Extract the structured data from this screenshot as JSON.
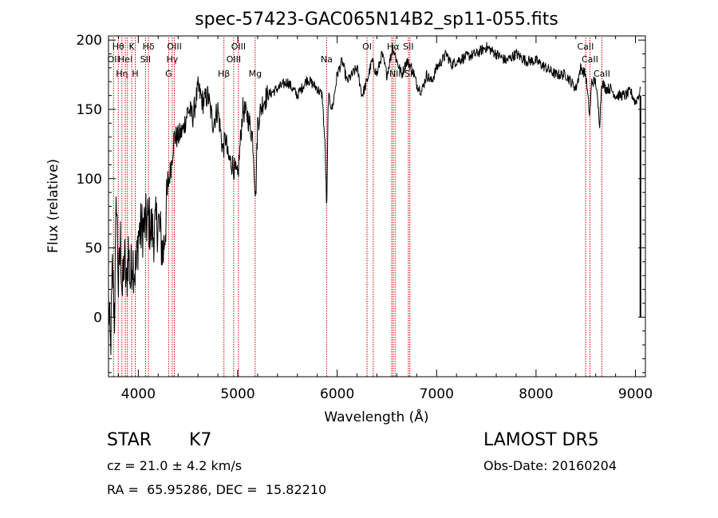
{
  "chart_data": {
    "type": "line",
    "title": "spec-57423-GAC065N14B2_sp11-055.fits",
    "xlabel": "Wavelength (Å)",
    "ylabel": "Flux (relative)",
    "xlim": [
      3700,
      9100
    ],
    "ylim": [
      -43,
      203
    ],
    "xticks": [
      4000,
      5000,
      6000,
      7000,
      8000,
      9000
    ],
    "yticks": [
      0,
      50,
      100,
      150,
      200
    ],
    "grid": false,
    "line_color": "#000000",
    "marker_color": "#cc0000",
    "series": [
      {
        "x": [
          3700,
          3720,
          3740,
          3760,
          3780,
          3800,
          3820,
          3840,
          3860,
          3880,
          3900,
          3920,
          3940,
          3960,
          3980,
          4000,
          4050,
          4100,
          4150,
          4200,
          4250,
          4300,
          4330,
          4360,
          4400,
          4450,
          4500,
          4550,
          4600,
          4650,
          4700,
          4750,
          4800,
          4850,
          4880,
          4900,
          4950,
          5000,
          5050,
          5100,
          5150,
          5180,
          5200,
          5250,
          5300,
          5400,
          5500,
          5600,
          5700,
          5800,
          5850,
          5880,
          5895,
          5910,
          5950,
          6000,
          6050,
          6100,
          6150,
          6200,
          6250,
          6300,
          6350,
          6400,
          6450,
          6500,
          6560,
          6600,
          6650,
          6700,
          6750,
          6800,
          6850,
          6900,
          6950,
          7000,
          7050,
          7100,
          7150,
          7200,
          7300,
          7400,
          7500,
          7600,
          7700,
          7800,
          7900,
          8000,
          8100,
          8200,
          8300,
          8400,
          8450,
          8500,
          8540,
          8560,
          8600,
          8640,
          8660,
          8700,
          8750,
          8800,
          8850,
          8900,
          8950,
          9000,
          9030,
          9050
        ],
        "values": [
          10,
          -25,
          35,
          0,
          90,
          20,
          55,
          15,
          45,
          20,
          50,
          25,
          45,
          35,
          35,
          60,
          65,
          70,
          60,
          70,
          45,
          95,
          110,
          130,
          130,
          135,
          150,
          145,
          165,
          155,
          160,
          140,
          150,
          120,
          130,
          115,
          110,
          100,
          150,
          145,
          130,
          85,
          140,
          155,
          160,
          165,
          170,
          160,
          172,
          165,
          160,
          120,
          75,
          160,
          150,
          175,
          185,
          170,
          175,
          180,
          160,
          170,
          185,
          175,
          190,
          175,
          195,
          185,
          175,
          185,
          180,
          168,
          163,
          175,
          170,
          180,
          185,
          190,
          182,
          185,
          188,
          190,
          195,
          190,
          185,
          190,
          185,
          185,
          180,
          175,
          175,
          165,
          180,
          175,
          145,
          170,
          170,
          140,
          170,
          165,
          165,
          160,
          160,
          160,
          163,
          155,
          160,
          163
        ]
      }
    ],
    "lines": [
      {
        "x": 3750,
        "label": "OII",
        "row": 1
      },
      {
        "x": 3798,
        "label": "Hθ",
        "row": 0
      },
      {
        "x": 3835,
        "label": "Hη",
        "row": 2
      },
      {
        "x": 3870,
        "label": "HeI",
        "row": 1
      },
      {
        "x": 3890,
        "label": "",
        "row": 1
      },
      {
        "x": 3934,
        "label": "K",
        "row": 0
      },
      {
        "x": 3969,
        "label": "H",
        "row": 2
      },
      {
        "x": 4072,
        "label": "SII",
        "row": 1
      },
      {
        "x": 4102,
        "label": "Hδ",
        "row": 0
      },
      {
        "x": 4305,
        "label": "G",
        "row": 2
      },
      {
        "x": 4341,
        "label": "Hγ",
        "row": 1
      },
      {
        "x": 4363,
        "label": "OIII",
        "row": 0
      },
      {
        "x": 4861,
        "label": "Hβ",
        "row": 2
      },
      {
        "x": 4959,
        "label": "OIII",
        "row": 1
      },
      {
        "x": 5007,
        "label": "OIII",
        "row": 0
      },
      {
        "x": 5175,
        "label": "Mg",
        "row": 2
      },
      {
        "x": 5894,
        "label": "Na",
        "row": 1
      },
      {
        "x": 6300,
        "label": "OI",
        "row": 0
      },
      {
        "x": 6363,
        "label": "",
        "row": 0
      },
      {
        "x": 6548,
        "label": "",
        "row": 0
      },
      {
        "x": 6563,
        "label": "Hα",
        "row": 0
      },
      {
        "x": 6583,
        "label": "NII",
        "row": 2
      },
      {
        "x": 6716,
        "label": "SII",
        "row": 0
      },
      {
        "x": 6731,
        "label": "SII",
        "row": 2
      },
      {
        "x": 8498,
        "label": "CaII",
        "row": 0
      },
      {
        "x": 8542,
        "label": "CaII",
        "row": 1
      },
      {
        "x": 8662,
        "label": "CaII",
        "row": 2
      }
    ]
  },
  "info": {
    "obj_class": "STAR",
    "subclass": "K7",
    "survey": "LAMOST DR5",
    "cz": "cz = 21.0 ± 4.2 km/s",
    "obs_date": "Obs-Date: 20160204",
    "coords": "RA =  65.95286, DEC =  15.82210"
  }
}
